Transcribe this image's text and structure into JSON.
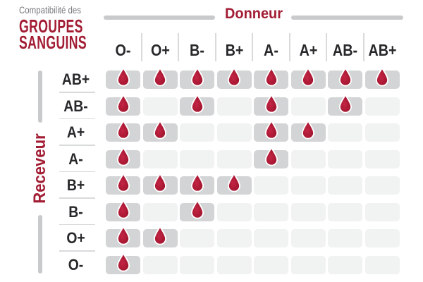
{
  "title": {
    "kicker": "Compatibilité des",
    "line1": "GROUPES",
    "line2": "SANGUINS"
  },
  "axis": {
    "donor_label": "Donneur",
    "receiver_label": "Receveur"
  },
  "chart_data": {
    "type": "heatmap",
    "title": "Compatibilité des groupes sanguins",
    "x_axis_label": "Donneur",
    "y_axis_label": "Receveur",
    "columns": [
      "O-",
      "O+",
      "B-",
      "B+",
      "A-",
      "A+",
      "AB-",
      "AB+"
    ],
    "rows": [
      "AB+",
      "AB-",
      "A+",
      "A-",
      "B+",
      "B-",
      "O+",
      "O-"
    ],
    "cell_marker": "blood-drop-icon",
    "legend": "1 = compatible (blood drop shown), 0 = not compatible",
    "matrix": [
      [
        1,
        1,
        1,
        1,
        1,
        1,
        1,
        1
      ],
      [
        1,
        0,
        1,
        0,
        1,
        0,
        1,
        0
      ],
      [
        1,
        1,
        0,
        0,
        1,
        1,
        0,
        0
      ],
      [
        1,
        0,
        0,
        0,
        1,
        0,
        0,
        0
      ],
      [
        1,
        1,
        1,
        1,
        0,
        0,
        0,
        0
      ],
      [
        1,
        0,
        1,
        0,
        0,
        0,
        0,
        0
      ],
      [
        1,
        1,
        0,
        0,
        0,
        0,
        0,
        0
      ],
      [
        1,
        0,
        0,
        0,
        0,
        0,
        0,
        0
      ]
    ]
  },
  "colors": {
    "accent_red": "#a21d34",
    "drop_center": "#c32545",
    "drop_edge": "#9b1129",
    "cell_active": "#d2d4d5",
    "cell_inactive": "#f1f2f2",
    "bar_gray": "#c8cacc",
    "divider_gray": "#d9dadb",
    "kicker_gray": "#77797c",
    "label_dark": "#28282b"
  }
}
